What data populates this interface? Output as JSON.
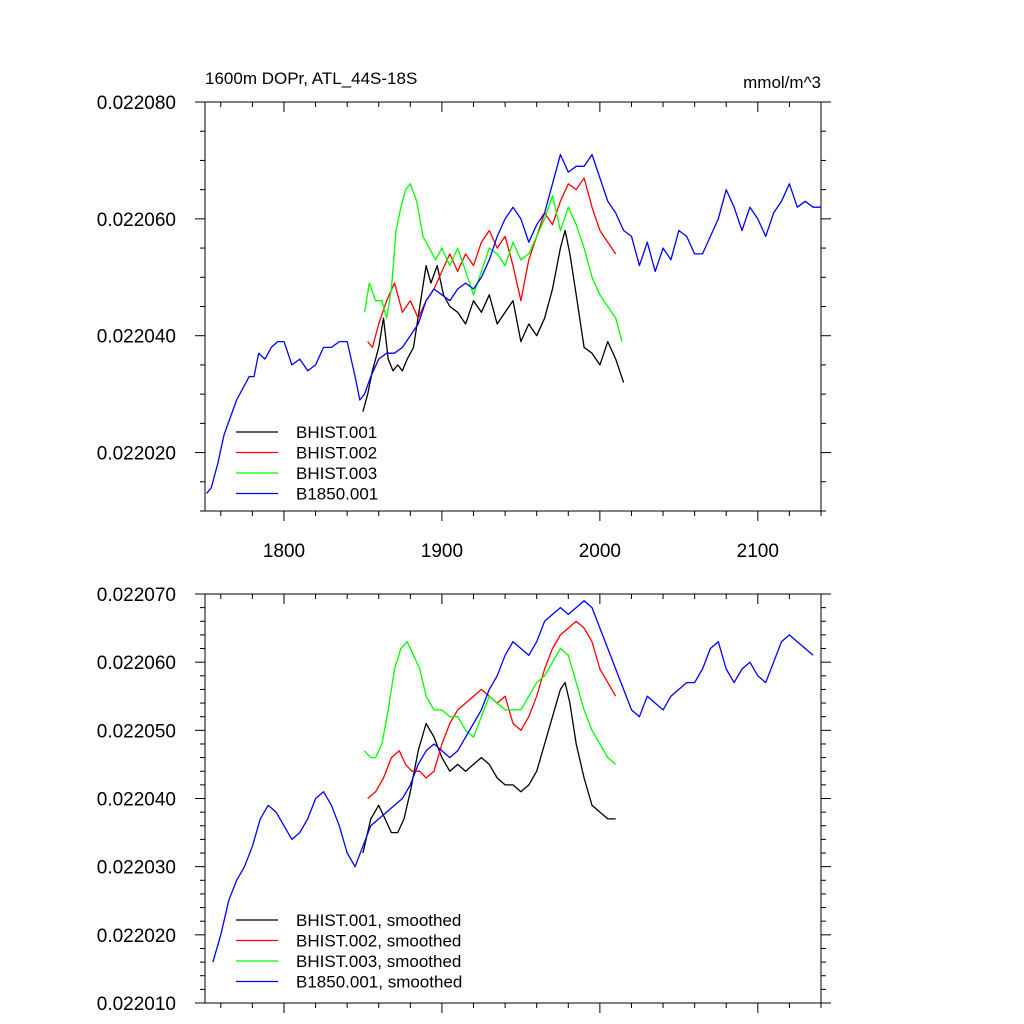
{
  "chart_data": [
    {
      "type": "line",
      "title": "1600m DOPr, ATL_44S-18S",
      "units": "mmol/m^3",
      "xlim": [
        1750,
        2140
      ],
      "ylim": [
        0.02201,
        0.02208
      ],
      "xticks": [
        1800,
        1900,
        2000,
        2100
      ],
      "xtick_labels": [
        "1800",
        "1900",
        "2000",
        "2100"
      ],
      "yticks": [
        0.02202,
        0.02204,
        0.02206,
        0.02208
      ],
      "ytick_labels": [
        "0.022020",
        "0.022040",
        "0.022060",
        "0.022080"
      ],
      "legend_position": "lower-left",
      "series": [
        {
          "name": "BHIST.001",
          "color": "#000000",
          "x": [
            1850,
            1853,
            1856,
            1860,
            1863,
            1866,
            1869,
            1872,
            1875,
            1878,
            1882,
            1886,
            1890,
            1893,
            1897,
            1901,
            1905,
            1910,
            1915,
            1920,
            1925,
            1930,
            1935,
            1940,
            1945,
            1950,
            1955,
            1960,
            1965,
            1970,
            1975,
            1978,
            1981,
            1985,
            1990,
            1995,
            2000,
            2005,
            2010,
            2015
          ],
          "y": [
            0.022027,
            0.02203,
            0.022034,
            0.022038,
            0.022043,
            0.022036,
            0.022034,
            0.022035,
            0.022034,
            0.022036,
            0.022038,
            0.022045,
            0.022052,
            0.022049,
            0.022052,
            0.022047,
            0.022045,
            0.022044,
            0.022042,
            0.022046,
            0.022044,
            0.022047,
            0.022042,
            0.022044,
            0.022046,
            0.022039,
            0.022042,
            0.02204,
            0.022043,
            0.022048,
            0.022055,
            0.022058,
            0.022054,
            0.022047,
            0.022038,
            0.022037,
            0.022035,
            0.022039,
            0.022036,
            0.022032
          ]
        },
        {
          "name": "BHIST.002",
          "color": "#ff0000",
          "x": [
            1853,
            1856,
            1860,
            1865,
            1870,
            1875,
            1880,
            1885,
            1890,
            1895,
            1900,
            1905,
            1910,
            1915,
            1920,
            1925,
            1930,
            1935,
            1940,
            1945,
            1950,
            1955,
            1960,
            1965,
            1970,
            1975,
            1980,
            1985,
            1990,
            1995,
            2000,
            2005,
            2010
          ],
          "y": [
            0.022039,
            0.022038,
            0.022042,
            0.022046,
            0.022049,
            0.022044,
            0.022046,
            0.022043,
            0.022046,
            0.022048,
            0.022051,
            0.022054,
            0.022051,
            0.022054,
            0.022052,
            0.022056,
            0.022058,
            0.022055,
            0.022057,
            0.022052,
            0.022046,
            0.022053,
            0.022057,
            0.022061,
            0.022059,
            0.022063,
            0.022066,
            0.022065,
            0.022067,
            0.022062,
            0.022058,
            0.022056,
            0.022054
          ]
        },
        {
          "name": "BHIST.003",
          "color": "#00ff00",
          "x": [
            1851,
            1854,
            1858,
            1862,
            1865,
            1868,
            1871,
            1874,
            1877,
            1880,
            1884,
            1888,
            1892,
            1896,
            1900,
            1905,
            1910,
            1915,
            1920,
            1925,
            1930,
            1935,
            1940,
            1945,
            1950,
            1955,
            1960,
            1965,
            1970,
            1975,
            1980,
            1985,
            1990,
            1995,
            2000,
            2005,
            2010,
            2014
          ],
          "y": [
            0.022044,
            0.022049,
            0.022046,
            0.022046,
            0.022043,
            0.022048,
            0.022058,
            0.022062,
            0.022065,
            0.022066,
            0.022063,
            0.022057,
            0.022055,
            0.022053,
            0.022055,
            0.022052,
            0.022055,
            0.022051,
            0.022047,
            0.022051,
            0.022055,
            0.022054,
            0.022052,
            0.022056,
            0.022053,
            0.022054,
            0.022057,
            0.02206,
            0.022064,
            0.022058,
            0.022062,
            0.022059,
            0.022055,
            0.02205,
            0.022047,
            0.022045,
            0.022043,
            0.022039
          ]
        },
        {
          "name": "B1850.001",
          "color": "#0000ff",
          "x": [
            1751,
            1754,
            1758,
            1762,
            1766,
            1770,
            1774,
            1778,
            1781,
            1784,
            1788,
            1792,
            1796,
            1800,
            1805,
            1810,
            1815,
            1820,
            1825,
            1830,
            1835,
            1840,
            1845,
            1848,
            1851,
            1855,
            1860,
            1865,
            1870,
            1875,
            1880,
            1885,
            1890,
            1895,
            1900,
            1905,
            1910,
            1915,
            1920,
            1925,
            1930,
            1935,
            1940,
            1945,
            1950,
            1955,
            1960,
            1965,
            1970,
            1975,
            1980,
            1985,
            1990,
            1995,
            2000,
            2005,
            2010,
            2015,
            2020,
            2025,
            2030,
            2035,
            2040,
            2045,
            2050,
            2055,
            2060,
            2065,
            2070,
            2075,
            2080,
            2085,
            2090,
            2095,
            2100,
            2105,
            2110,
            2115,
            2120,
            2125,
            2130,
            2135,
            2140
          ],
          "y": [
            0.022013,
            0.022014,
            0.022018,
            0.022023,
            0.022026,
            0.022029,
            0.022031,
            0.022033,
            0.022033,
            0.022037,
            0.022036,
            0.022038,
            0.022039,
            0.022039,
            0.022035,
            0.022036,
            0.022034,
            0.022035,
            0.022038,
            0.022038,
            0.022039,
            0.022039,
            0.022033,
            0.022029,
            0.02203,
            0.022033,
            0.022036,
            0.022037,
            0.022037,
            0.022038,
            0.02204,
            0.022042,
            0.022046,
            0.022048,
            0.022047,
            0.022046,
            0.022048,
            0.022049,
            0.022048,
            0.02205,
            0.022053,
            0.022057,
            0.02206,
            0.022062,
            0.02206,
            0.022056,
            0.022059,
            0.022061,
            0.022066,
            0.022071,
            0.022068,
            0.022069,
            0.022069,
            0.022071,
            0.022067,
            0.022063,
            0.022061,
            0.022058,
            0.022057,
            0.022052,
            0.022056,
            0.022051,
            0.022055,
            0.022053,
            0.022058,
            0.022057,
            0.022054,
            0.022054,
            0.022057,
            0.02206,
            0.022065,
            0.022062,
            0.022058,
            0.022062,
            0.02206,
            0.022057,
            0.022061,
            0.022063,
            0.022066,
            0.022062,
            0.022063,
            0.022062,
            0.022062
          ]
        }
      ]
    },
    {
      "type": "line",
      "title": "",
      "xlim": [
        1750,
        2140
      ],
      "ylim": [
        0.02201,
        0.02207
      ],
      "xticks": [
        1800,
        1900,
        2000,
        2100
      ],
      "yticks": [
        0.02201,
        0.02202,
        0.02203,
        0.02204,
        0.02205,
        0.02206,
        0.02207
      ],
      "ytick_labels": [
        "0.022010",
        "0.022020",
        "0.022030",
        "0.022040",
        "0.022050",
        "0.022060",
        "0.022070"
      ],
      "legend_position": "lower-left",
      "series": [
        {
          "name": "BHIST.001, smoothed",
          "color": "#000000",
          "x": [
            1850,
            1855,
            1860,
            1864,
            1868,
            1872,
            1876,
            1880,
            1885,
            1890,
            1895,
            1900,
            1905,
            1910,
            1915,
            1920,
            1925,
            1930,
            1935,
            1940,
            1945,
            1950,
            1955,
            1960,
            1965,
            1970,
            1975,
            1978,
            1981,
            1985,
            1990,
            1995,
            2000,
            2005,
            2010
          ],
          "y": [
            0.022032,
            0.022037,
            0.022039,
            0.022037,
            0.022035,
            0.022035,
            0.022037,
            0.022041,
            0.022047,
            0.022051,
            0.022049,
            0.022046,
            0.022044,
            0.022045,
            0.022044,
            0.022045,
            0.022046,
            0.022045,
            0.022043,
            0.022042,
            0.022042,
            0.022041,
            0.022042,
            0.022044,
            0.022048,
            0.022052,
            0.022056,
            0.022057,
            0.022054,
            0.022048,
            0.022043,
            0.022039,
            0.022038,
            0.022037,
            0.022037
          ]
        },
        {
          "name": "BHIST.002, smoothed",
          "color": "#ff0000",
          "x": [
            1853,
            1858,
            1863,
            1868,
            1873,
            1877,
            1881,
            1886,
            1890,
            1895,
            1900,
            1905,
            1910,
            1915,
            1920,
            1925,
            1930,
            1935,
            1940,
            1945,
            1950,
            1955,
            1960,
            1965,
            1970,
            1975,
            1980,
            1985,
            1990,
            1995,
            2000,
            2005,
            2010
          ],
          "y": [
            0.02204,
            0.022041,
            0.022043,
            0.022046,
            0.022047,
            0.022045,
            0.022044,
            0.022044,
            0.022043,
            0.022044,
            0.022048,
            0.022051,
            0.022053,
            0.022054,
            0.022055,
            0.022056,
            0.022055,
            0.022054,
            0.022055,
            0.022051,
            0.02205,
            0.022052,
            0.022055,
            0.022059,
            0.022062,
            0.022064,
            0.022065,
            0.022066,
            0.022065,
            0.022063,
            0.022059,
            0.022057,
            0.022055
          ]
        },
        {
          "name": "BHIST.003, smoothed",
          "color": "#00ff00",
          "x": [
            1851,
            1855,
            1858,
            1862,
            1866,
            1870,
            1874,
            1878,
            1882,
            1886,
            1890,
            1895,
            1900,
            1905,
            1910,
            1915,
            1920,
            1925,
            1930,
            1935,
            1940,
            1945,
            1950,
            1955,
            1960,
            1965,
            1970,
            1975,
            1980,
            1985,
            1990,
            1995,
            2000,
            2005,
            2010
          ],
          "y": [
            0.022047,
            0.022046,
            0.022046,
            0.022048,
            0.022053,
            0.022059,
            0.022062,
            0.022063,
            0.022061,
            0.022059,
            0.022055,
            0.022053,
            0.022053,
            0.022052,
            0.022052,
            0.02205,
            0.022049,
            0.022052,
            0.022055,
            0.022054,
            0.022053,
            0.022053,
            0.022053,
            0.022055,
            0.022057,
            0.022058,
            0.02206,
            0.022062,
            0.022061,
            0.022057,
            0.022053,
            0.02205,
            0.022048,
            0.022046,
            0.022045
          ]
        },
        {
          "name": "B1850.001, smoothed",
          "color": "#0000ff",
          "x": [
            1755,
            1760,
            1765,
            1770,
            1775,
            1780,
            1785,
            1790,
            1795,
            1800,
            1805,
            1810,
            1815,
            1820,
            1825,
            1830,
            1835,
            1840,
            1845,
            1850,
            1855,
            1860,
            1865,
            1870,
            1875,
            1880,
            1885,
            1890,
            1895,
            1900,
            1905,
            1910,
            1915,
            1920,
            1925,
            1930,
            1935,
            1940,
            1945,
            1950,
            1955,
            1960,
            1965,
            1970,
            1975,
            1980,
            1985,
            1990,
            1995,
            2000,
            2005,
            2010,
            2015,
            2020,
            2025,
            2030,
            2035,
            2040,
            2045,
            2050,
            2055,
            2060,
            2065,
            2070,
            2075,
            2080,
            2085,
            2090,
            2095,
            2100,
            2105,
            2110,
            2115,
            2120,
            2125,
            2130,
            2135
          ],
          "y": [
            0.022016,
            0.02202,
            0.022025,
            0.022028,
            0.02203,
            0.022033,
            0.022037,
            0.022039,
            0.022038,
            0.022036,
            0.022034,
            0.022035,
            0.022037,
            0.02204,
            0.022041,
            0.022039,
            0.022036,
            0.022032,
            0.02203,
            0.022033,
            0.022036,
            0.022037,
            0.022038,
            0.022039,
            0.02204,
            0.022042,
            0.022045,
            0.022047,
            0.022048,
            0.022047,
            0.022046,
            0.022047,
            0.022049,
            0.022051,
            0.022053,
            0.022056,
            0.022058,
            0.022061,
            0.022063,
            0.022062,
            0.022061,
            0.022063,
            0.022066,
            0.022067,
            0.022068,
            0.022067,
            0.022068,
            0.022069,
            0.022068,
            0.022065,
            0.022062,
            0.022059,
            0.022056,
            0.022053,
            0.022052,
            0.022055,
            0.022054,
            0.022053,
            0.022055,
            0.022056,
            0.022057,
            0.022057,
            0.022059,
            0.022062,
            0.022063,
            0.022059,
            0.022057,
            0.022059,
            0.02206,
            0.022058,
            0.022057,
            0.02206,
            0.022063,
            0.022064,
            0.022063,
            0.022062,
            0.022061
          ]
        }
      ]
    }
  ]
}
